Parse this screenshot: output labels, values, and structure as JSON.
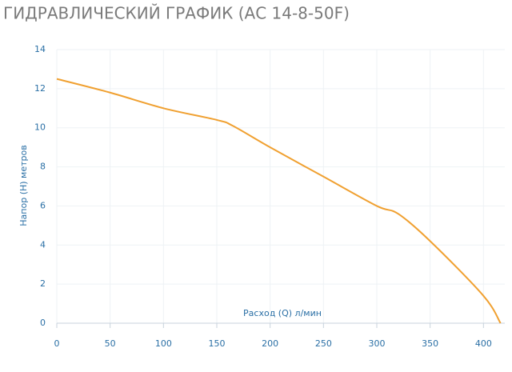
{
  "chart_data": {
    "type": "line",
    "title": "ГИДРАВЛИЧЕСКИЙ ГРАФИК (АС 14-8-50F)",
    "x_label": "Расход (Q) л/мин",
    "y_label": "Напор (H) метров",
    "x": [
      0,
      50,
      100,
      150,
      165,
      200,
      250,
      300,
      320,
      350,
      400,
      416
    ],
    "series": [
      {
        "name": "АС 14-8-50F",
        "color": "#f0a030",
        "values": [
          12.5,
          11.8,
          11.0,
          10.4,
          10.1,
          9.0,
          7.5,
          6.0,
          5.6,
          4.2,
          1.4,
          0
        ]
      }
    ],
    "xlim": [
      0,
      420
    ],
    "xticks": [
      0,
      50,
      100,
      150,
      200,
      250,
      300,
      350,
      400
    ],
    "ylim": [
      0,
      14
    ],
    "yticks": [
      0,
      2,
      4,
      6,
      8,
      10,
      12,
      14
    ],
    "grid": true
  }
}
